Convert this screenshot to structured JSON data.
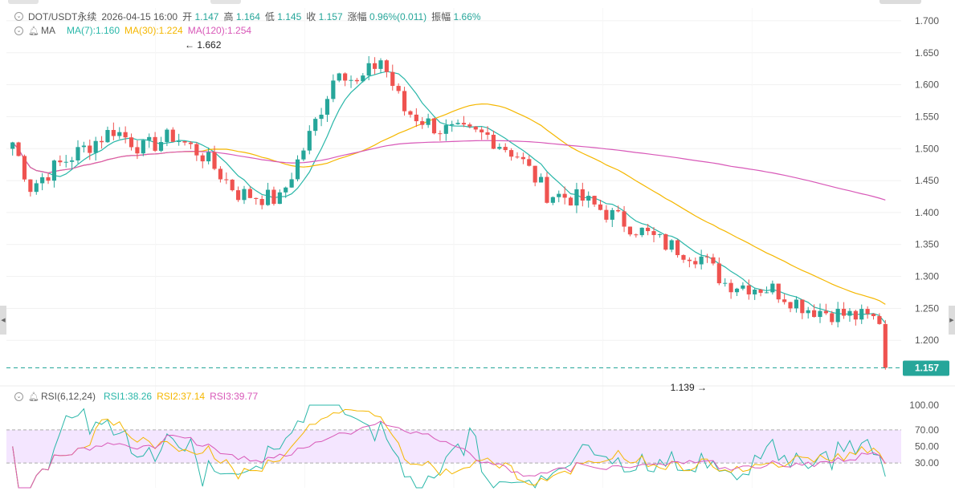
{
  "header": {
    "symbol": "DOT/USDT永续",
    "datetime": "2026-04-15 16:00",
    "open_label": "开",
    "open": "1.147",
    "high_label": "高",
    "high": "1.164",
    "low_label": "低",
    "low": "1.145",
    "close_label": "收",
    "close": "1.157",
    "change_label": "涨幅",
    "change": "0.96%(0.011)",
    "amplitude_label": "振幅",
    "amplitude": "1.66%"
  },
  "ma_legend": {
    "name": "MA",
    "ma7": "MA(7):1.160",
    "ma30": "MA(30):1.224",
    "ma120": "MA(120):1.254"
  },
  "rsi_legend": {
    "name": "RSI(6,12,24)",
    "rsi1": "RSI1:38.26",
    "rsi2": "RSI2:37.14",
    "rsi3": "RSI3:39.77"
  },
  "annotations": {
    "high_marker": "1.662",
    "low_marker": "1.139"
  },
  "price_axis": {
    "ticks": [
      "1.700",
      "1.650",
      "1.600",
      "1.550",
      "1.500",
      "1.450",
      "1.400",
      "1.350",
      "1.300",
      "1.250",
      "1.200"
    ]
  },
  "rsi_axis": {
    "ticks": [
      "100.00",
      "70.00",
      "50.00",
      "30.00"
    ]
  },
  "last_price_tag": "1.157",
  "colors": {
    "up": "#26a69a",
    "down": "#ef5350",
    "ma7": "#2ab7a9",
    "ma30": "#f5b700",
    "ma120": "#d858b8",
    "rsi1": "#2ab7a9",
    "rsi2": "#f5b700",
    "rsi3": "#d858b8",
    "rsi_band": "#f4e6ff"
  },
  "chart_data": [
    {
      "type": "candlestick",
      "ylim": [
        1.13,
        1.72
      ],
      "bar_count": 148,
      "description_values": {
        "anchors": [
          [
            0,
            1.51
          ],
          [
            3,
            1.44
          ],
          [
            7,
            1.47
          ],
          [
            12,
            1.5
          ],
          [
            17,
            1.53
          ],
          [
            22,
            1.5
          ],
          [
            27,
            1.52
          ],
          [
            32,
            1.49
          ],
          [
            38,
            1.43
          ],
          [
            45,
            1.42
          ],
          [
            50,
            1.52
          ],
          [
            55,
            1.63
          ],
          [
            58,
            1.6
          ],
          [
            62,
            1.64
          ],
          [
            66,
            1.56
          ],
          [
            72,
            1.53
          ],
          [
            80,
            1.52
          ],
          [
            85,
            1.49
          ],
          [
            90,
            1.43
          ],
          [
            96,
            1.42
          ],
          [
            100,
            1.4
          ],
          [
            106,
            1.37
          ],
          [
            110,
            1.35
          ],
          [
            116,
            1.33
          ],
          [
            120,
            1.29
          ],
          [
            128,
            1.28
          ],
          [
            134,
            1.25
          ],
          [
            140,
            1.24
          ],
          [
            148,
            1.23
          ]
        ]
      },
      "annotation_high": 1.662,
      "annotation_low": 1.139,
      "last_close": 1.157,
      "ma_series": [
        {
          "name": "MA(7)",
          "value": 1.16
        },
        {
          "name": "MA(30)",
          "value": 1.224
        },
        {
          "name": "MA(120)",
          "value": 1.254
        }
      ]
    },
    {
      "type": "line",
      "ylim": [
        0,
        100
      ],
      "band": [
        30,
        70
      ],
      "series": [
        {
          "name": "RSI1",
          "value": 38.26
        },
        {
          "name": "RSI2",
          "value": 37.14
        },
        {
          "name": "RSI3",
          "value": 39.77
        }
      ]
    }
  ]
}
